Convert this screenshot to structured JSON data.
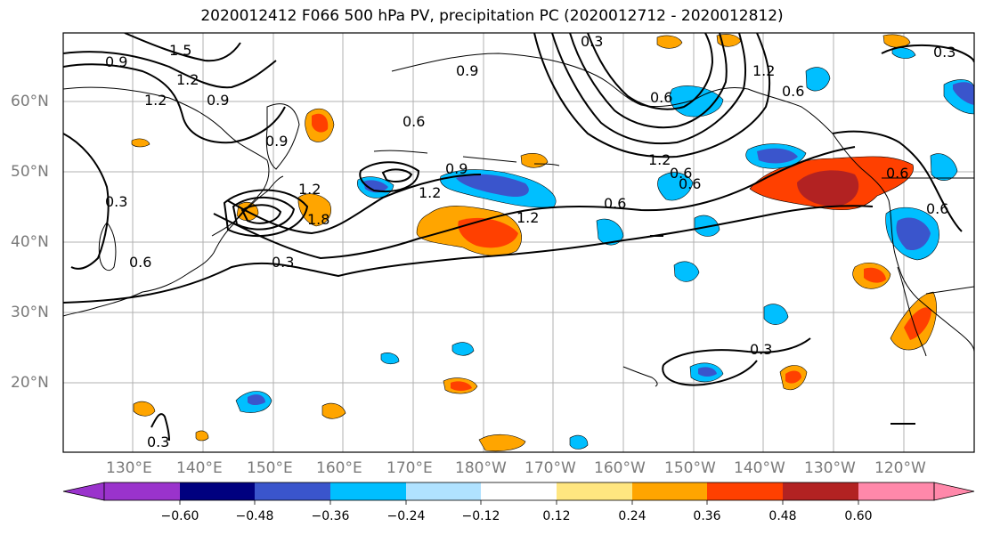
{
  "title": "2020012412 F066 500 hPa PV, precipitation PC (2020012712 - 2020012812)",
  "lat_labels": [
    "60°N",
    "50°N",
    "40°N",
    "30°N",
    "20°N"
  ],
  "lon_labels": [
    "130°E",
    "140°E",
    "150°E",
    "160°E",
    "170°E",
    "180°W",
    "170°W",
    "160°W",
    "150°W",
    "140°W",
    "130°W",
    "120°W"
  ],
  "colorbar": {
    "ticks": [
      "−0.60",
      "−0.48",
      "−0.36",
      "−0.24",
      "−0.12",
      "0.12",
      "0.24",
      "0.36",
      "0.48",
      "0.60"
    ],
    "colors": [
      "#9a33cc",
      "#00007f",
      "#3a55cc",
      "#00bfff",
      "#b0e2ff",
      "#ffffff",
      "#ffe680",
      "#ffa500",
      "#ff4000",
      "#b22222",
      "#ff88aa"
    ]
  },
  "contour_labels": [
    "0.9",
    "1.5",
    "1.2",
    "0.9",
    "1.2",
    "0.9",
    "0.9",
    "0.6",
    "0.9",
    "1.2",
    "1.2",
    "0.6",
    "0.3",
    "0.3",
    "0.6",
    "0.3",
    "1.2",
    "0.6",
    "0.6",
    "1.2",
    "0.6",
    "0.6",
    "0.6",
    "0.3",
    "0.3",
    "0.6",
    "1.8",
    "1.2",
    "0.3"
  ]
}
